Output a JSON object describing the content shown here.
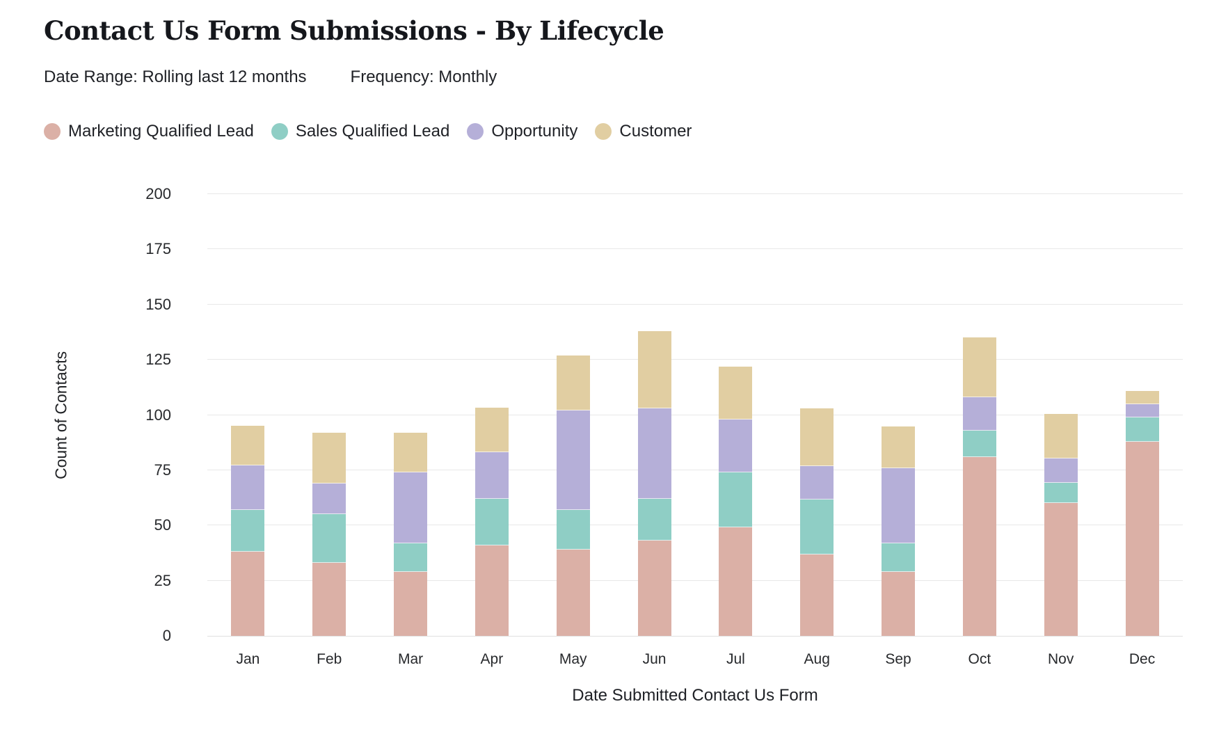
{
  "header": {
    "title": "Contact Us Form Submissions - By Lifecycle",
    "date_range": "Date Range: Rolling last 12 months",
    "frequency": "Frequency: Monthly"
  },
  "chart_data": {
    "type": "bar",
    "stacked": true,
    "title": "Contact Us Form Submissions - By Lifecycle",
    "xlabel": "Date Submitted Contact Us Form",
    "ylabel": "Count of Contacts",
    "categories": [
      "Jan",
      "Feb",
      "Mar",
      "Apr",
      "May",
      "Jun",
      "Jul",
      "Aug",
      "Sep",
      "Oct",
      "Nov",
      "Dec"
    ],
    "series": [
      {
        "name": "Marketing Qualified Lead",
        "color": "#DBB0A6",
        "values": [
          38,
          33,
          29,
          41,
          39,
          43,
          49,
          37,
          29,
          81,
          60,
          88
        ]
      },
      {
        "name": "Sales Qualified Lead",
        "color": "#8FCEC5",
        "values": [
          19,
          22,
          13,
          21,
          18,
          19,
          25,
          25,
          13,
          12,
          9,
          11
        ]
      },
      {
        "name": "Opportunity",
        "color": "#B5AFD8",
        "values": [
          20,
          14,
          32,
          21,
          45,
          41,
          24,
          15,
          34,
          15,
          11,
          6
        ]
      },
      {
        "name": "Customer",
        "color": "#E1CEA2",
        "values": [
          18,
          23,
          18,
          20,
          25,
          35,
          24,
          26,
          19,
          27,
          20,
          6
        ]
      }
    ],
    "totals": [
      95,
      92,
      92,
      103,
      127,
      138,
      122,
      103,
      95,
      135,
      100,
      111
    ],
    "ylim": [
      0,
      200
    ],
    "yticks": [
      0,
      25,
      50,
      75,
      100,
      125,
      150,
      175,
      200
    ],
    "grid": true,
    "legend_position": "top"
  },
  "colors": {
    "gridline": "#e8e8e8",
    "baseline": "#e0e0e0",
    "background": "#ffffff"
  }
}
